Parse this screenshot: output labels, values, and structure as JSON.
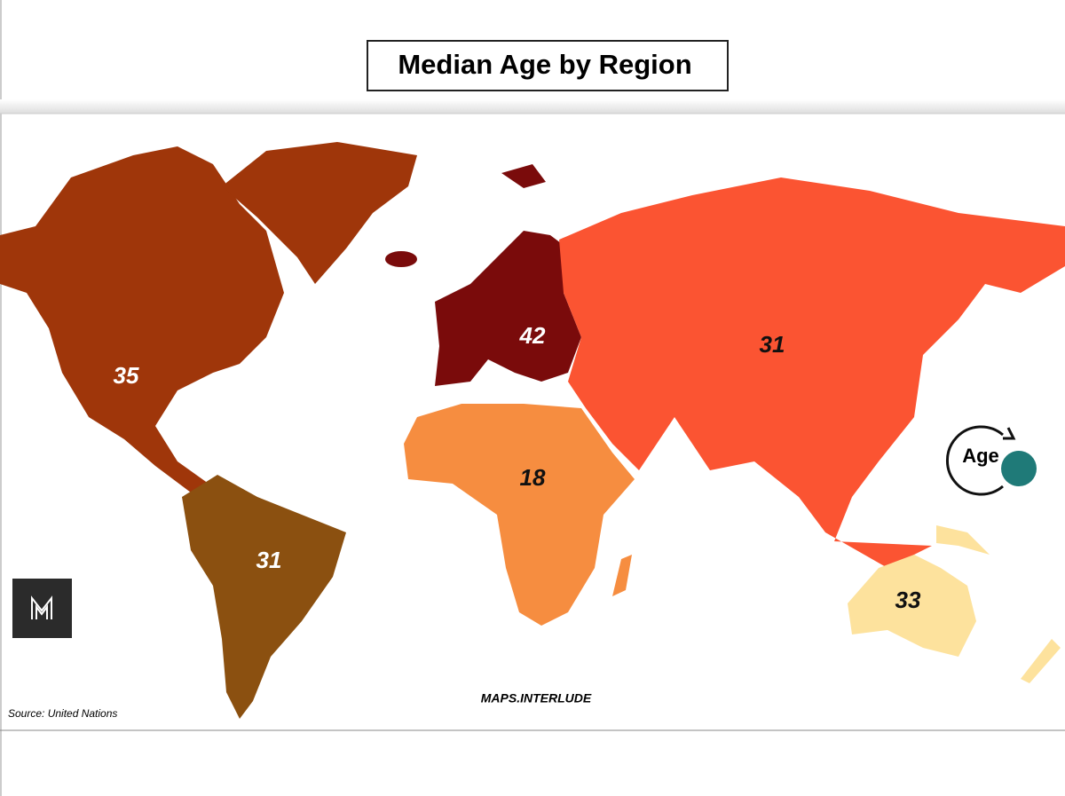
{
  "title": "Median Age by Region",
  "regions": [
    {
      "value": 35,
      "color": "#9f360a",
      "label_color": "#ffffff"
    },
    {
      "value": 31,
      "color": "#8b5010",
      "label_color": "#ffffff"
    },
    {
      "value": 42,
      "color": "#7a0b0b",
      "label_color": "#ffffff"
    },
    {
      "value": 31,
      "color": "#fb5432",
      "label_color": "#111111"
    },
    {
      "value": 18,
      "color": "#f68d40",
      "label_color": "#111111"
    },
    {
      "value": 33,
      "color": "#fde29d",
      "label_color": "#111111"
    }
  ],
  "credit": "MAPS.INTERLUDE",
  "source": "Source: United Nations",
  "logo": "Age"
}
